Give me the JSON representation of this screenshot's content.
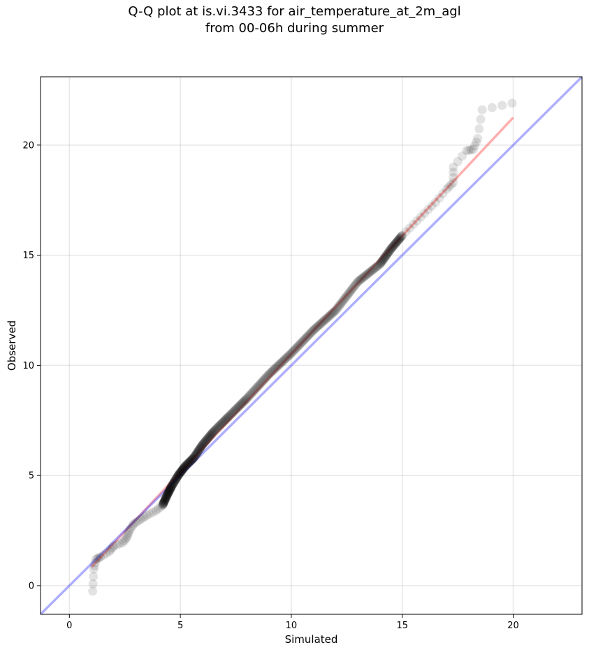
{
  "chart_data": {
    "type": "scatter",
    "title": "Q-Q plot at is.vi.3433 for air_temperature_at_2m_agl",
    "subtitle": "from 00-06h during summer",
    "xlabel": "Simulated",
    "ylabel": "Observed",
    "xlim": [
      -1.3,
      23.1
    ],
    "ylim": [
      -1.3,
      23.1
    ],
    "xticks": [
      0,
      5,
      10,
      15,
      20
    ],
    "yticks": [
      0,
      5,
      10,
      15,
      20
    ],
    "grid": true,
    "colors": {
      "points": "#000000",
      "fit_line": "#ff4d4d",
      "identity_line": "#4d4dff"
    },
    "anchors": [
      [
        1.05,
        -0.25
      ],
      [
        1.1,
        0.75
      ],
      [
        1.2,
        1.2
      ],
      [
        1.4,
        1.3
      ],
      [
        1.8,
        1.55
      ],
      [
        2.0,
        1.8
      ],
      [
        2.4,
        1.95
      ],
      [
        2.6,
        2.2
      ],
      [
        2.7,
        2.5
      ],
      [
        2.9,
        2.8
      ],
      [
        3.2,
        3.0
      ],
      [
        3.5,
        3.2
      ],
      [
        3.9,
        3.4
      ],
      [
        4.2,
        3.65
      ],
      [
        4.4,
        4.1
      ],
      [
        4.6,
        4.5
      ],
      [
        4.9,
        5.0
      ],
      [
        5.2,
        5.4
      ],
      [
        5.6,
        5.8
      ],
      [
        6.0,
        6.4
      ],
      [
        6.5,
        7.0
      ],
      [
        7.2,
        7.7
      ],
      [
        8.0,
        8.5
      ],
      [
        9.0,
        9.6
      ],
      [
        10.0,
        10.55
      ],
      [
        11.0,
        11.6
      ],
      [
        12.0,
        12.5
      ],
      [
        13.0,
        13.8
      ],
      [
        14.0,
        14.6
      ],
      [
        14.5,
        15.3
      ],
      [
        15.0,
        15.9
      ],
      [
        15.5,
        16.4
      ],
      [
        16.0,
        16.9
      ],
      [
        16.5,
        17.4
      ],
      [
        17.0,
        18.0
      ],
      [
        17.3,
        18.3
      ],
      [
        17.3,
        19.0
      ],
      [
        17.9,
        19.75
      ],
      [
        18.2,
        19.8
      ],
      [
        18.4,
        20.3
      ],
      [
        18.6,
        21.6
      ],
      [
        19.95,
        21.9
      ]
    ],
    "fit_line": {
      "x": [
        1.0,
        20.0
      ],
      "y": [
        0.85,
        21.25
      ]
    },
    "identity_line": {
      "x": [
        -1.3,
        23.1
      ],
      "y": [
        -1.3,
        23.1
      ]
    }
  }
}
